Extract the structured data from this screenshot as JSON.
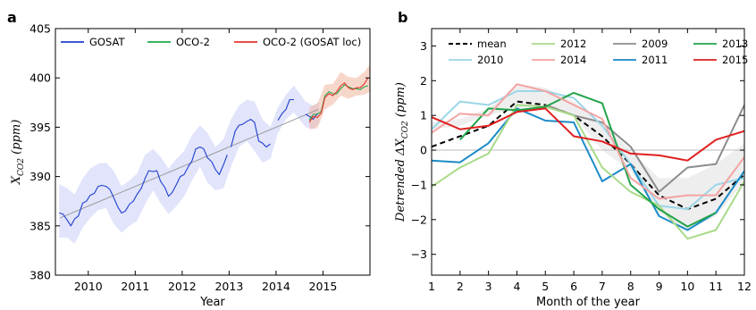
{
  "chart_data": [
    {
      "panel": "a",
      "type": "line",
      "title": "",
      "xlabel": "Year",
      "ylabel": "X_CO2 (ppm)",
      "ylabel_parts": {
        "sym": "X",
        "sub": "CO2",
        "unit": " (ppm)"
      },
      "xlim": [
        2009.3,
        2016.0
      ],
      "ylim": [
        380,
        405
      ],
      "xticks": [
        2010,
        2011,
        2012,
        2013,
        2014,
        2015
      ],
      "yticks": [
        380,
        385,
        390,
        395,
        400,
        405
      ],
      "legend_position": "top",
      "series": [
        {
          "name": "GOSAT",
          "color": "#1f3fd0",
          "band_color": "#c8cdf5",
          "segments": [
            [
              [
                2009.38,
                386.3
              ],
              [
                2009.46,
                386.2
              ],
              [
                2009.55,
                385.6
              ],
              [
                2009.63,
                385.0
              ],
              [
                2009.71,
                385.7
              ],
              [
                2009.79,
                386.0
              ],
              [
                2009.88,
                387.3
              ],
              [
                2009.96,
                387.5
              ],
              [
                2010.04,
                388.1
              ],
              [
                2010.13,
                388.3
              ],
              [
                2010.21,
                389.0
              ],
              [
                2010.29,
                389.1
              ],
              [
                2010.38,
                389.0
              ],
              [
                2010.46,
                388.7
              ],
              [
                2010.54,
                387.9
              ],
              [
                2010.63,
                386.9
              ],
              [
                2010.71,
                386.3
              ],
              [
                2010.79,
                386.5
              ],
              [
                2010.88,
                387.2
              ],
              [
                2010.96,
                387.5
              ],
              [
                2011.04,
                388.2
              ],
              [
                2011.13,
                388.8
              ],
              [
                2011.21,
                389.8
              ],
              [
                2011.29,
                390.6
              ],
              [
                2011.38,
                390.5
              ],
              [
                2011.46,
                390.6
              ],
              [
                2011.54,
                389.5
              ],
              [
                2011.63,
                388.9
              ],
              [
                2011.71,
                388.0
              ],
              [
                2011.79,
                388.4
              ],
              [
                2011.88,
                389.2
              ],
              [
                2011.96,
                390.0
              ],
              [
                2012.04,
                390.2
              ],
              [
                2012.13,
                391.0
              ],
              [
                2012.21,
                391.6
              ],
              [
                2012.29,
                392.8
              ],
              [
                2012.38,
                393.0
              ],
              [
                2012.46,
                392.8
              ],
              [
                2012.54,
                391.9
              ],
              [
                2012.63,
                391.5
              ],
              [
                2012.71,
                390.7
              ],
              [
                2012.79,
                390.2
              ],
              [
                2012.88,
                391.2
              ],
              [
                2012.96,
                392.2
              ]
            ],
            [
              [
                2013.04,
                393.0
              ],
              [
                2013.13,
                394.6
              ],
              [
                2013.21,
                395.2
              ],
              [
                2013.29,
                395.3
              ],
              [
                2013.38,
                395.6
              ],
              [
                2013.46,
                395.8
              ],
              [
                2013.54,
                395.5
              ],
              [
                2013.63,
                393.6
              ],
              [
                2013.71,
                393.4
              ],
              [
                2013.79,
                393.0
              ],
              [
                2013.88,
                393.3
              ]
            ],
            [
              [
                2014.04,
                395.7
              ],
              [
                2014.13,
                396.4
              ],
              [
                2014.21,
                396.8
              ],
              [
                2014.29,
                397.8
              ],
              [
                2014.38,
                397.8
              ]
            ],
            [
              [
                2014.63,
                396.3
              ],
              [
                2014.71,
                396.1
              ],
              [
                2014.79,
                395.8
              ],
              [
                2014.88,
                396.4
              ]
            ]
          ],
          "band": {
            "x": [
              2009.38,
              2009.55,
              2009.71,
              2009.88,
              2010.04,
              2010.21,
              2010.38,
              2010.54,
              2010.71,
              2010.88,
              2011.04,
              2011.21,
              2011.38,
              2011.54,
              2011.71,
              2011.88,
              2012.04,
              2012.21,
              2012.38,
              2012.54,
              2012.71,
              2012.88,
              2013.04,
              2013.21,
              2013.38,
              2013.54,
              2013.71,
              2013.88,
              2014.04,
              2014.21,
              2014.38,
              2014.63,
              2014.79,
              2014.92
            ],
            "lower": [
              383.8,
              383.8,
              383.2,
              384.8,
              385.8,
              386.6,
              386.8,
              385.2,
              384.3,
              385.0,
              385.5,
              387.2,
              388.6,
              387.3,
              386.2,
              387.0,
              388.0,
              389.6,
              391.0,
              389.4,
              388.6,
              388.8,
              391.0,
              393.0,
              393.6,
              392.6,
              391.4,
              391.8,
              394.4,
              395.8,
              396.5,
              395.0,
              394.8,
              395.4
            ],
            "upper": [
              389.2,
              388.8,
              388.2,
              389.8,
              390.8,
              391.3,
              391.4,
              390.6,
              389.0,
              389.6,
              390.3,
              392.2,
              392.8,
              392.0,
              390.8,
              391.8,
              392.6,
              394.2,
              395.2,
              394.4,
              393.0,
              393.8,
              395.8,
              397.2,
              397.8,
              397.6,
              395.8,
              395.0,
              397.0,
              398.3,
              399.2,
              397.6,
              397.2,
              397.6
            ]
          },
          "trend": [
            [
              2009.4,
              385.8
            ],
            [
              2014.9,
              396.8
            ]
          ]
        },
        {
          "name": "OCO-2",
          "color": "#22a845",
          "band_color": "#bfe0c2",
          "segments": [
            [
              [
                2014.71,
                395.7
              ],
              [
                2014.79,
                396.3
              ],
              [
                2014.88,
                396.3
              ],
              [
                2014.96,
                396.6
              ],
              [
                2015.04,
                398.2
              ],
              [
                2015.13,
                398.6
              ],
              [
                2015.21,
                398.4
              ],
              [
                2015.29,
                398.4
              ],
              [
                2015.38,
                398.9
              ],
              [
                2015.46,
                399.3
              ],
              [
                2015.54,
                399.1
              ],
              [
                2015.63,
                398.9
              ],
              [
                2015.71,
                398.9
              ],
              [
                2015.79,
                398.8
              ],
              [
                2015.88,
                399.1
              ],
              [
                2015.96,
                399.2
              ]
            ]
          ]
        },
        {
          "name": "OCO-2 (GOSAT loc)",
          "color": "#e8322e",
          "band_color": "#f2b6a0",
          "segments": [
            [
              [
                2014.71,
                395.5
              ],
              [
                2014.79,
                396.1
              ],
              [
                2014.88,
                396.0
              ],
              [
                2014.96,
                396.4
              ],
              [
                2015.04,
                398.0
              ],
              [
                2015.13,
                398.4
              ],
              [
                2015.21,
                398.2
              ],
              [
                2015.29,
                398.6
              ],
              [
                2015.38,
                399.2
              ],
              [
                2015.46,
                399.5
              ],
              [
                2015.54,
                399.0
              ],
              [
                2015.63,
                398.8
              ],
              [
                2015.71,
                399.0
              ],
              [
                2015.79,
                399.0
              ],
              [
                2015.88,
                399.4
              ],
              [
                2015.96,
                400.0
              ]
            ]
          ],
          "band": {
            "x": [
              2014.71,
              2014.88,
              2015.04,
              2015.21,
              2015.38,
              2015.54,
              2015.71,
              2015.88,
              2016.0
            ],
            "lower": [
              394.8,
              394.9,
              396.8,
              397.3,
              398.2,
              397.9,
              398.2,
              398.3,
              398.6
            ],
            "upper": [
              397.0,
              397.4,
              399.3,
              399.4,
              400.6,
              400.1,
              400.0,
              400.6,
              401.4
            ]
          }
        }
      ]
    },
    {
      "panel": "b",
      "type": "line",
      "title": "",
      "xlabel": "Month of the year",
      "ylabel": "Detrended ΔX_CO2 (ppm)",
      "ylabel_parts": {
        "pre": "Detrended ΔX",
        "sub": "CO2",
        "unit": " (ppm)"
      },
      "xlim": [
        1,
        12
      ],
      "ylim": [
        -3.6,
        3.5
      ],
      "xticks": [
        1,
        2,
        3,
        4,
        5,
        6,
        7,
        8,
        9,
        10,
        11,
        12
      ],
      "yticks": [
        -3,
        -2,
        -1,
        0,
        1,
        2,
        3
      ],
      "zero_line": true,
      "legend_position": "top",
      "band": {
        "x": [
          1,
          2,
          3,
          4,
          5,
          6,
          7,
          8,
          9,
          10,
          11,
          12
        ],
        "lower": [
          0.6,
          0.7,
          1.0,
          1.2,
          1.3,
          1.0,
          0.0,
          -0.6,
          -1.8,
          -2.3,
          -1.9,
          -0.9
        ],
        "upper": [
          0.8,
          0.9,
          1.2,
          1.9,
          1.8,
          1.4,
          0.8,
          0.0,
          -0.8,
          -0.8,
          -0.4,
          0.2
        ],
        "color": "#e0e0e0"
      },
      "series": [
        {
          "name": "mean",
          "color": "#000000",
          "dash": true,
          "x": [
            1,
            2,
            3,
            4,
            5,
            6,
            7,
            8,
            9,
            10,
            11,
            12
          ],
          "y": [
            0.1,
            0.4,
            0.7,
            1.4,
            1.3,
            1.0,
            0.4,
            -0.4,
            -1.3,
            -1.7,
            -1.4,
            -0.7
          ]
        },
        {
          "name": "2009",
          "color": "#8c8c8c",
          "x": [
            5,
            6,
            7,
            8,
            9,
            10,
            11,
            12
          ],
          "y": [
            1.3,
            1.0,
            0.8,
            0.1,
            -1.2,
            -0.5,
            -0.4,
            1.3
          ]
        },
        {
          "name": "2010",
          "color": "#9ad6e6",
          "x": [
            1,
            2,
            3,
            4,
            5,
            6,
            7,
            8,
            9,
            10,
            11,
            12
          ],
          "y": [
            0.6,
            1.4,
            1.3,
            1.7,
            1.7,
            1.5,
            0.7,
            -0.4,
            -1.6,
            -1.7,
            -1.0,
            -0.8
          ]
        },
        {
          "name": "2011",
          "color": "#1a8ac6",
          "x": [
            1,
            2,
            3,
            4,
            5,
            6,
            7,
            8,
            9,
            10,
            11,
            12
          ],
          "y": [
            -0.3,
            -0.35,
            0.2,
            1.2,
            0.85,
            0.8,
            -0.9,
            -0.4,
            -1.9,
            -2.3,
            -1.8,
            -0.6
          ]
        },
        {
          "name": "2012",
          "color": "#a8da88",
          "x": [
            1,
            2,
            3,
            4,
            5,
            6,
            7,
            8,
            9,
            10,
            11,
            12
          ],
          "y": [
            -1.05,
            -0.5,
            -0.1,
            1.3,
            1.25,
            1.0,
            -0.5,
            -1.2,
            -1.6,
            -2.55,
            -2.3,
            -0.9
          ]
        },
        {
          "name": "2013",
          "color": "#22a34a",
          "x": [
            2,
            3,
            4,
            5,
            6,
            7,
            8,
            9,
            10,
            11
          ],
          "y": [
            0.3,
            1.2,
            1.15,
            1.25,
            1.65,
            1.35,
            -1.0,
            -1.7,
            -2.2,
            -1.8
          ]
        },
        {
          "name": "2014",
          "color": "#f4a3a3",
          "x": [
            1,
            2,
            3,
            4,
            5,
            6,
            7,
            8,
            9,
            10,
            11,
            12
          ],
          "y": [
            0.5,
            1.05,
            1.0,
            1.9,
            1.7,
            1.3,
            0.9,
            -0.8,
            -1.4,
            -1.3,
            -1.3,
            -0.2
          ]
        },
        {
          "name": "2015",
          "color": "#e01f1f",
          "x": [
            1,
            2,
            3,
            4,
            5,
            6,
            7,
            8,
            9,
            10,
            11,
            12
          ],
          "y": [
            0.95,
            0.6,
            0.7,
            1.1,
            1.2,
            0.4,
            0.25,
            -0.1,
            -0.15,
            -0.3,
            0.3,
            0.55
          ]
        }
      ]
    }
  ],
  "panel_labels": [
    "a",
    "b"
  ]
}
